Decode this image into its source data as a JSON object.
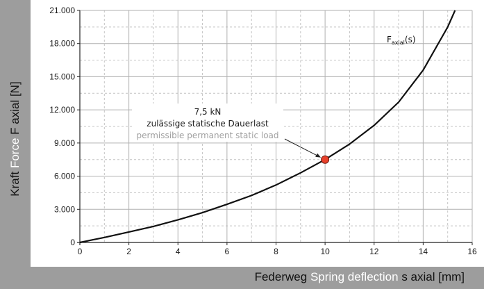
{
  "chart_data": {
    "type": "line",
    "xlabel_parts": [
      "Federweg",
      "Spring deflection",
      "s axial [mm]"
    ],
    "ylabel_parts": [
      "Kraft",
      "Force",
      "F axial [N]"
    ],
    "x_ticks": [
      "0",
      "2",
      "4",
      "6",
      "8",
      "10",
      "12",
      "14",
      "16"
    ],
    "y_ticks": [
      "0",
      "3.000",
      "6.000",
      "9.000",
      "12.000",
      "15.000",
      "18.000",
      "21.000"
    ],
    "xlim": [
      0,
      16
    ],
    "ylim": [
      0,
      21000
    ],
    "grid": true,
    "series": [
      {
        "name_main": "F",
        "name_sub": "axial",
        "name_suffix": "(s)",
        "x": [
          0,
          1,
          2,
          3,
          4,
          5,
          6,
          7,
          8,
          9,
          10,
          11,
          12,
          13,
          14,
          15,
          15.3
        ],
        "y": [
          0,
          450,
          950,
          1450,
          2050,
          2700,
          3450,
          4250,
          5200,
          6300,
          7500,
          8900,
          10600,
          12700,
          15600,
          19500,
          21000
        ]
      }
    ],
    "annotation": {
      "x": 10,
      "y": 7500,
      "lines": [
        "7,5 kN",
        "zulässige statische Dauerlast",
        "permissible permanent static load"
      ],
      "marker_color": "#e8402a"
    }
  }
}
